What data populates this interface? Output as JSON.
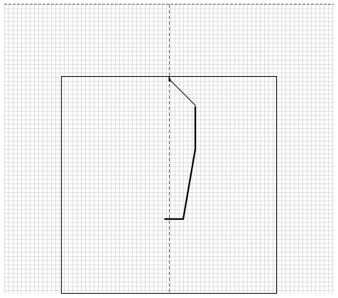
{
  "drawing": {
    "grid_color": "#dcdcdc",
    "line_color": "#000000",
    "guide_color": "#555555",
    "background": "#ffffff"
  }
}
